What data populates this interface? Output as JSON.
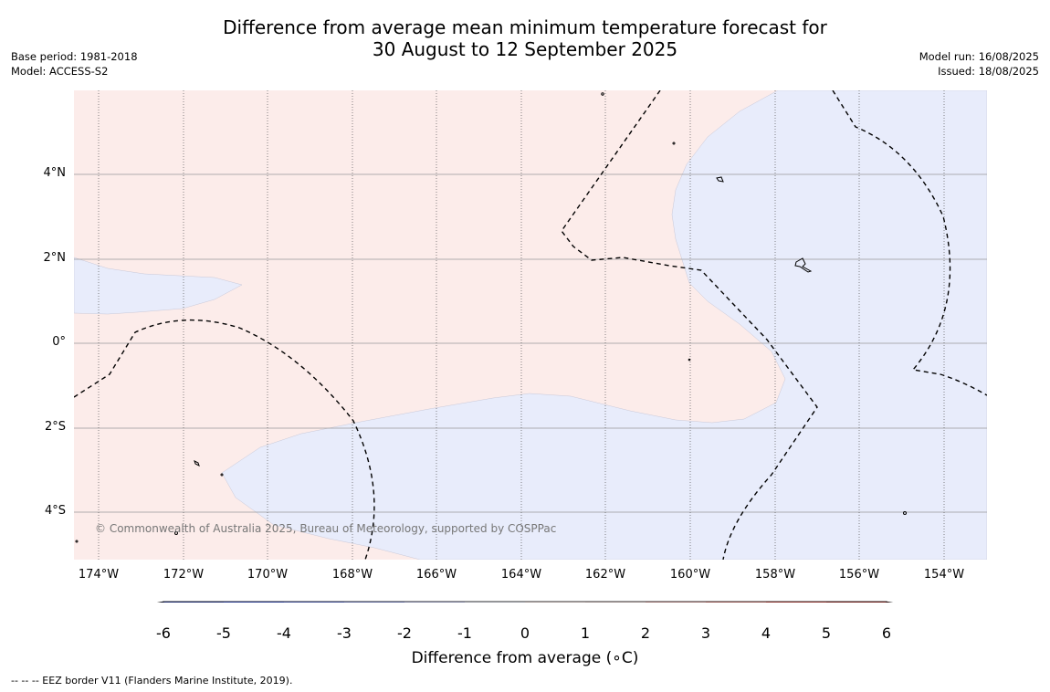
{
  "title": {
    "line1": "Difference from average mean minimum temperature forecast for",
    "line2": "30 August to 12 September 2025"
  },
  "meta_left": {
    "base_period": "Base period: 1981-2018",
    "model": "Model: ACCESS-S2"
  },
  "meta_right": {
    "model_run": "Model run: 16/08/2025",
    "issued": "Issued: 18/08/2025"
  },
  "map": {
    "lat_labels": [
      "4°N",
      "2°N",
      "0°",
      "2°S",
      "4°S"
    ],
    "lon_labels": [
      "174°W",
      "172°W",
      "170°W",
      "168°W",
      "166°W",
      "164°W",
      "162°W",
      "160°W",
      "158°W",
      "156°W",
      "154°W"
    ],
    "copyright": "© Commonwealth of Australia 2025, Bureau of Meteorology, supported by COSPPac",
    "colors": {
      "warm_fill": "#fcecea",
      "cool_fill": "#e8ecfb",
      "gridline_lat": "#999999",
      "gridline_lon": "#555555",
      "eez_border": "#000000"
    }
  },
  "colorbar": {
    "title": "Difference from average (∘C)",
    "ticks": [
      "-6",
      "-5",
      "-4",
      "-3",
      "-2",
      "-1",
      "0",
      "1",
      "2",
      "3",
      "4",
      "5",
      "6"
    ],
    "under_color": "#15205e",
    "over_color": "#6b1a1a",
    "colors": [
      "#2a3fae",
      "#3553e0",
      "#5a73e5",
      "#8898ec",
      "#c3c9f6",
      "#eceefb",
      "#fcecea",
      "#efd8d7",
      "#efadaa",
      "#e9827c",
      "#dd4b43",
      "#b12e28"
    ]
  },
  "footnote": "--  --  -- EEZ border V11 (Flanders Marine Institute, 2019)."
}
